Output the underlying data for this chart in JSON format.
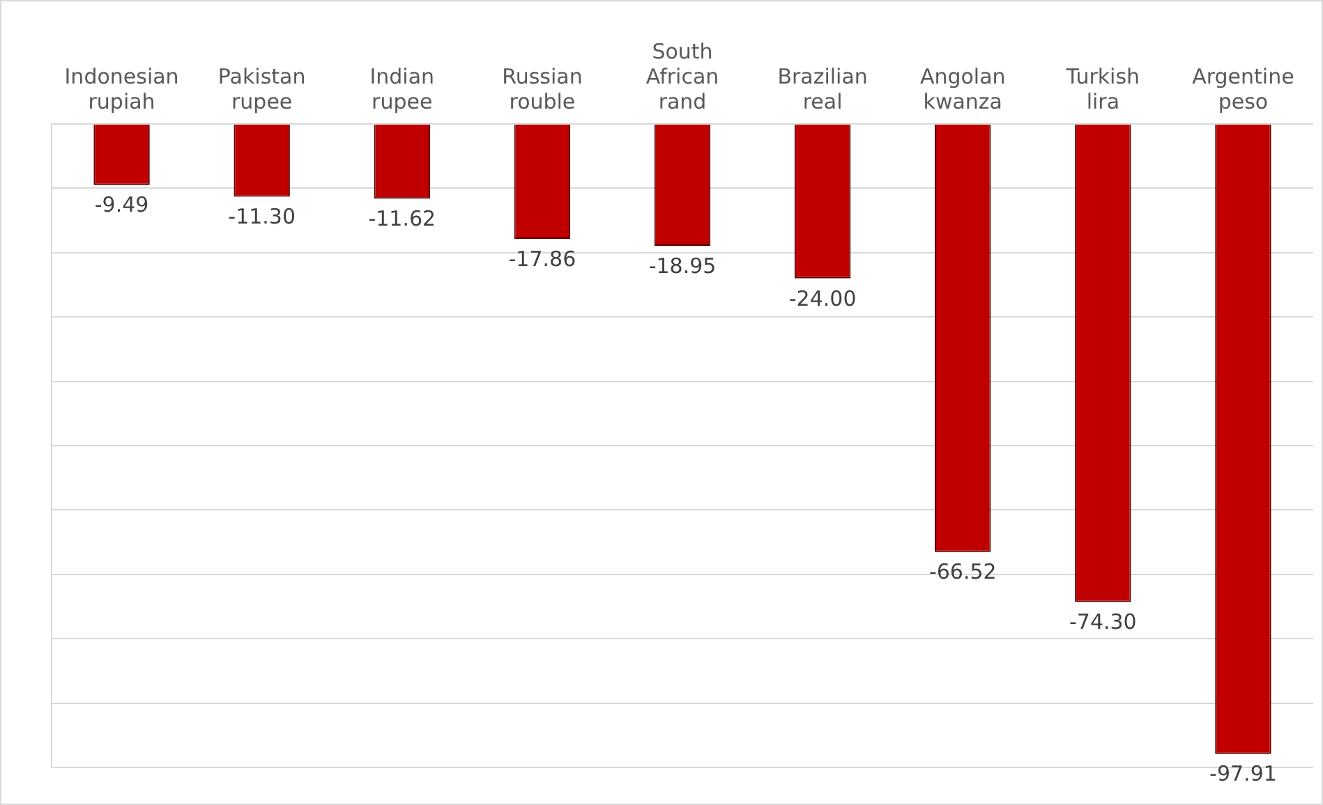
{
  "chart_data": {
    "type": "bar",
    "categories": [
      "Indonesian rupiah",
      "Pakistan rupee",
      "Indian rupee",
      "Russian rouble",
      "South African rand",
      "Brazilian real",
      "Angolan kwanza",
      "Turkish lira",
      "Argentine peso"
    ],
    "values": [
      -9.49,
      -11.3,
      -11.62,
      -17.86,
      -18.95,
      -24.0,
      -66.52,
      -74.3,
      -97.91
    ],
    "value_labels": [
      "-9.49",
      "-11.30",
      "-11.62",
      "-17.86",
      "-18.95",
      "-24.00",
      "-66.52",
      "-74.30",
      "-97.91"
    ],
    "color": "#c00000",
    "ylim": [
      -100,
      0
    ],
    "grid": "y",
    "tick_labels": "x",
    "legend": false
  }
}
